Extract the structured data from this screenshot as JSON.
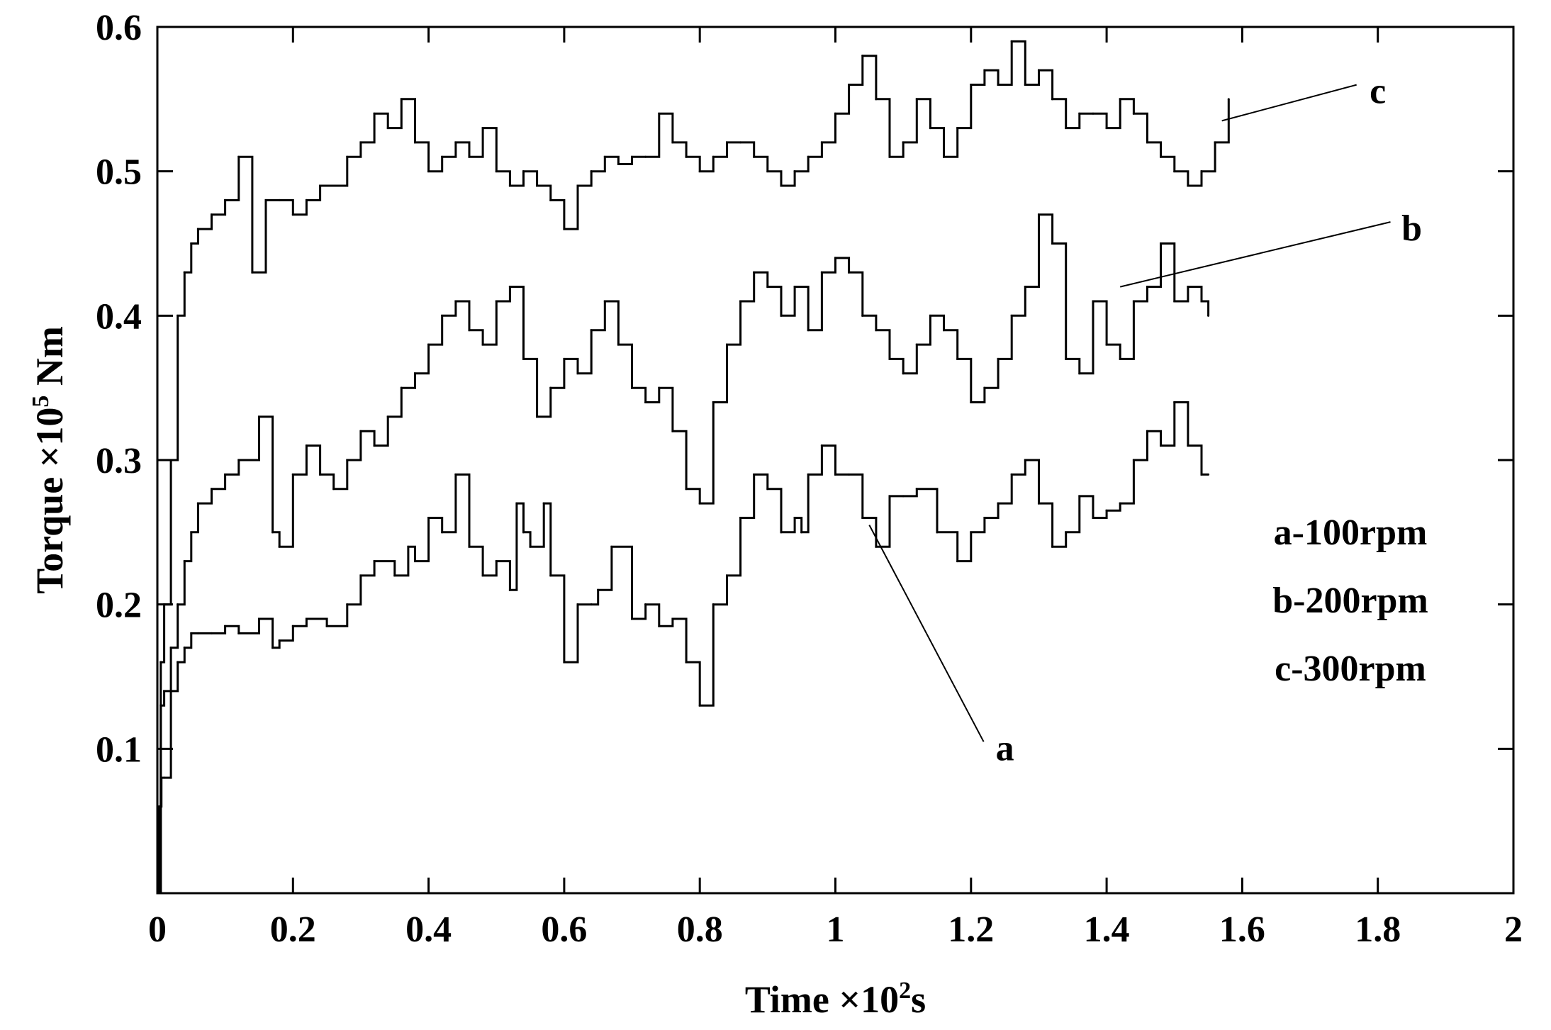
{
  "chart_data": {
    "type": "line",
    "xlabel": "Time ×10",
    "xlabel_sup": "2",
    "xlabel_unit": "s",
    "ylabel": "Torque ×10",
    "ylabel_sup": "5",
    "ylabel_unit": " Nm",
    "xlim": [
      0,
      2
    ],
    "ylim": [
      0,
      0.6
    ],
    "xticks": [
      "0",
      "0.2",
      "0.4",
      "0.6",
      "0.8",
      "1",
      "1.2",
      "1.4",
      "1.6",
      "1.8",
      "2"
    ],
    "yticks": [
      "0.1",
      "0.2",
      "0.3",
      "0.4",
      "0.5",
      "0.6"
    ],
    "grid": false,
    "legend": [
      "a-100rpm",
      "b-200rpm",
      "c-300rpm"
    ],
    "legend_position": "right",
    "line_color": "#000000",
    "series": [
      {
        "name": "a",
        "x": [
          0.0,
          0.003,
          0.006,
          0.01,
          0.02,
          0.03,
          0.04,
          0.05,
          0.06,
          0.08,
          0.1,
          0.12,
          0.15,
          0.17,
          0.18,
          0.2,
          0.22,
          0.25,
          0.28,
          0.3,
          0.32,
          0.35,
          0.37,
          0.38,
          0.4,
          0.42,
          0.44,
          0.46,
          0.48,
          0.5,
          0.52,
          0.53,
          0.54,
          0.55,
          0.57,
          0.58,
          0.6,
          0.62,
          0.64,
          0.65,
          0.67,
          0.7,
          0.72,
          0.74,
          0.76,
          0.78,
          0.8,
          0.82,
          0.84,
          0.86,
          0.88,
          0.9,
          0.92,
          0.94,
          0.95,
          0.96,
          0.98,
          1.0,
          1.02,
          1.04,
          1.06,
          1.08,
          1.1,
          1.12,
          1.15,
          1.18,
          1.2,
          1.22,
          1.24,
          1.26,
          1.28,
          1.3,
          1.32,
          1.34,
          1.36,
          1.38,
          1.4,
          1.42,
          1.44,
          1.46,
          1.48,
          1.5,
          1.52,
          1.54,
          1.55
        ],
        "y": [
          0.0,
          0.06,
          0.08,
          0.08,
          0.14,
          0.16,
          0.17,
          0.18,
          0.18,
          0.18,
          0.185,
          0.18,
          0.19,
          0.17,
          0.175,
          0.185,
          0.19,
          0.185,
          0.2,
          0.22,
          0.23,
          0.22,
          0.24,
          0.23,
          0.26,
          0.25,
          0.29,
          0.24,
          0.22,
          0.23,
          0.21,
          0.27,
          0.25,
          0.24,
          0.27,
          0.22,
          0.16,
          0.2,
          0.2,
          0.21,
          0.24,
          0.19,
          0.2,
          0.185,
          0.19,
          0.16,
          0.13,
          0.2,
          0.22,
          0.26,
          0.29,
          0.28,
          0.25,
          0.26,
          0.25,
          0.29,
          0.31,
          0.29,
          0.29,
          0.26,
          0.24,
          0.275,
          0.275,
          0.28,
          0.25,
          0.23,
          0.25,
          0.26,
          0.27,
          0.29,
          0.3,
          0.27,
          0.24,
          0.25,
          0.275,
          0.26,
          0.265,
          0.27,
          0.3,
          0.32,
          0.31,
          0.34,
          0.31,
          0.29,
          0.29
        ]
      },
      {
        "name": "b",
        "x": [
          0.0,
          0.005,
          0.01,
          0.02,
          0.03,
          0.04,
          0.05,
          0.06,
          0.08,
          0.1,
          0.12,
          0.15,
          0.17,
          0.18,
          0.2,
          0.22,
          0.24,
          0.26,
          0.28,
          0.3,
          0.32,
          0.34,
          0.36,
          0.38,
          0.4,
          0.42,
          0.44,
          0.46,
          0.48,
          0.5,
          0.52,
          0.54,
          0.56,
          0.58,
          0.6,
          0.62,
          0.64,
          0.66,
          0.68,
          0.7,
          0.72,
          0.74,
          0.76,
          0.78,
          0.8,
          0.82,
          0.84,
          0.86,
          0.88,
          0.9,
          0.92,
          0.94,
          0.96,
          0.98,
          1.0,
          1.02,
          1.04,
          1.06,
          1.08,
          1.1,
          1.12,
          1.14,
          1.16,
          1.18,
          1.2,
          1.22,
          1.24,
          1.26,
          1.28,
          1.3,
          1.32,
          1.34,
          1.36,
          1.38,
          1.4,
          1.42,
          1.44,
          1.46,
          1.48,
          1.5,
          1.52,
          1.54,
          1.55
        ],
        "y": [
          0.0,
          0.13,
          0.14,
          0.17,
          0.2,
          0.23,
          0.25,
          0.27,
          0.28,
          0.29,
          0.3,
          0.33,
          0.25,
          0.24,
          0.29,
          0.31,
          0.29,
          0.28,
          0.3,
          0.32,
          0.31,
          0.33,
          0.35,
          0.36,
          0.38,
          0.4,
          0.41,
          0.39,
          0.38,
          0.41,
          0.42,
          0.37,
          0.33,
          0.35,
          0.37,
          0.36,
          0.39,
          0.41,
          0.38,
          0.35,
          0.34,
          0.35,
          0.32,
          0.28,
          0.27,
          0.34,
          0.38,
          0.41,
          0.43,
          0.42,
          0.4,
          0.42,
          0.39,
          0.43,
          0.44,
          0.43,
          0.4,
          0.39,
          0.37,
          0.36,
          0.38,
          0.4,
          0.39,
          0.37,
          0.34,
          0.35,
          0.37,
          0.4,
          0.42,
          0.47,
          0.45,
          0.37,
          0.36,
          0.41,
          0.38,
          0.37,
          0.41,
          0.42,
          0.45,
          0.41,
          0.42,
          0.41,
          0.4
        ]
      },
      {
        "name": "c",
        "x": [
          0.0,
          0.005,
          0.01,
          0.02,
          0.03,
          0.04,
          0.05,
          0.06,
          0.08,
          0.1,
          0.12,
          0.14,
          0.16,
          0.18,
          0.2,
          0.22,
          0.24,
          0.26,
          0.28,
          0.3,
          0.32,
          0.34,
          0.36,
          0.38,
          0.4,
          0.42,
          0.44,
          0.46,
          0.48,
          0.5,
          0.52,
          0.54,
          0.56,
          0.58,
          0.6,
          0.62,
          0.64,
          0.66,
          0.68,
          0.7,
          0.72,
          0.74,
          0.76,
          0.78,
          0.8,
          0.82,
          0.84,
          0.86,
          0.88,
          0.9,
          0.92,
          0.94,
          0.96,
          0.98,
          1.0,
          1.02,
          1.04,
          1.06,
          1.08,
          1.1,
          1.12,
          1.14,
          1.16,
          1.18,
          1.2,
          1.22,
          1.24,
          1.26,
          1.28,
          1.3,
          1.32,
          1.34,
          1.36,
          1.38,
          1.4,
          1.42,
          1.44,
          1.46,
          1.48,
          1.5,
          1.52,
          1.54,
          1.56,
          1.58
        ],
        "y": [
          0.0,
          0.16,
          0.2,
          0.3,
          0.4,
          0.43,
          0.45,
          0.46,
          0.47,
          0.48,
          0.51,
          0.43,
          0.48,
          0.48,
          0.47,
          0.48,
          0.49,
          0.49,
          0.51,
          0.52,
          0.54,
          0.53,
          0.55,
          0.52,
          0.5,
          0.51,
          0.52,
          0.51,
          0.53,
          0.5,
          0.49,
          0.5,
          0.49,
          0.48,
          0.46,
          0.49,
          0.5,
          0.51,
          0.505,
          0.51,
          0.51,
          0.54,
          0.52,
          0.51,
          0.5,
          0.51,
          0.52,
          0.52,
          0.51,
          0.5,
          0.49,
          0.5,
          0.51,
          0.52,
          0.54,
          0.56,
          0.58,
          0.55,
          0.51,
          0.52,
          0.55,
          0.53,
          0.51,
          0.53,
          0.56,
          0.57,
          0.56,
          0.59,
          0.56,
          0.57,
          0.55,
          0.53,
          0.54,
          0.54,
          0.53,
          0.55,
          0.54,
          0.52,
          0.51,
          0.5,
          0.49,
          0.5,
          0.52,
          0.55
        ]
      }
    ],
    "curve_labels": [
      {
        "text": "a",
        "series": "a",
        "label_x": 1.25,
        "label_y": 0.1,
        "anchor_x": 1.05,
        "anchor_y": 0.255
      },
      {
        "text": "b",
        "series": "b",
        "label_x": 1.85,
        "label_y": 0.46,
        "anchor_x": 1.42,
        "anchor_y": 0.42
      },
      {
        "text": "c",
        "series": "c",
        "label_x": 1.8,
        "label_y": 0.555,
        "anchor_x": 1.57,
        "anchor_y": 0.535
      }
    ]
  }
}
